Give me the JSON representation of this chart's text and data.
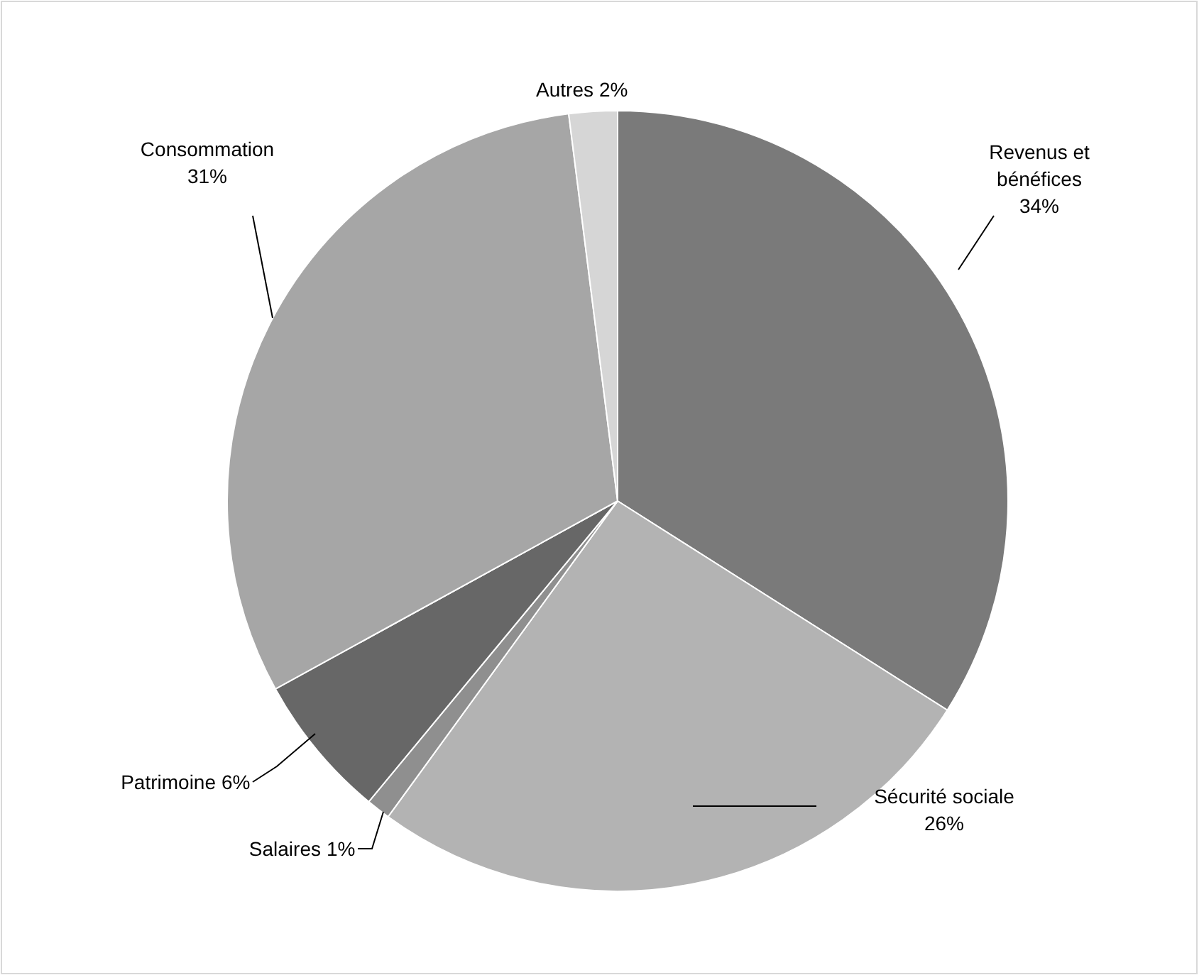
{
  "chart_data": {
    "type": "pie",
    "categories": [
      "Revenus et bénéfices",
      "Sécurité sociale",
      "Salaires",
      "Patrimoine",
      "Consommation",
      "Autres"
    ],
    "values": [
      34,
      26,
      1,
      6,
      31,
      2
    ],
    "colors": [
      "#7a7a7a",
      "#b3b3b3",
      "#8f8f8f",
      "#676767",
      "#a6a6a6",
      "#d6d6d6"
    ],
    "value_labels": [
      "34%",
      "26%",
      "1%",
      "6%",
      "31%",
      "2%"
    ]
  }
}
